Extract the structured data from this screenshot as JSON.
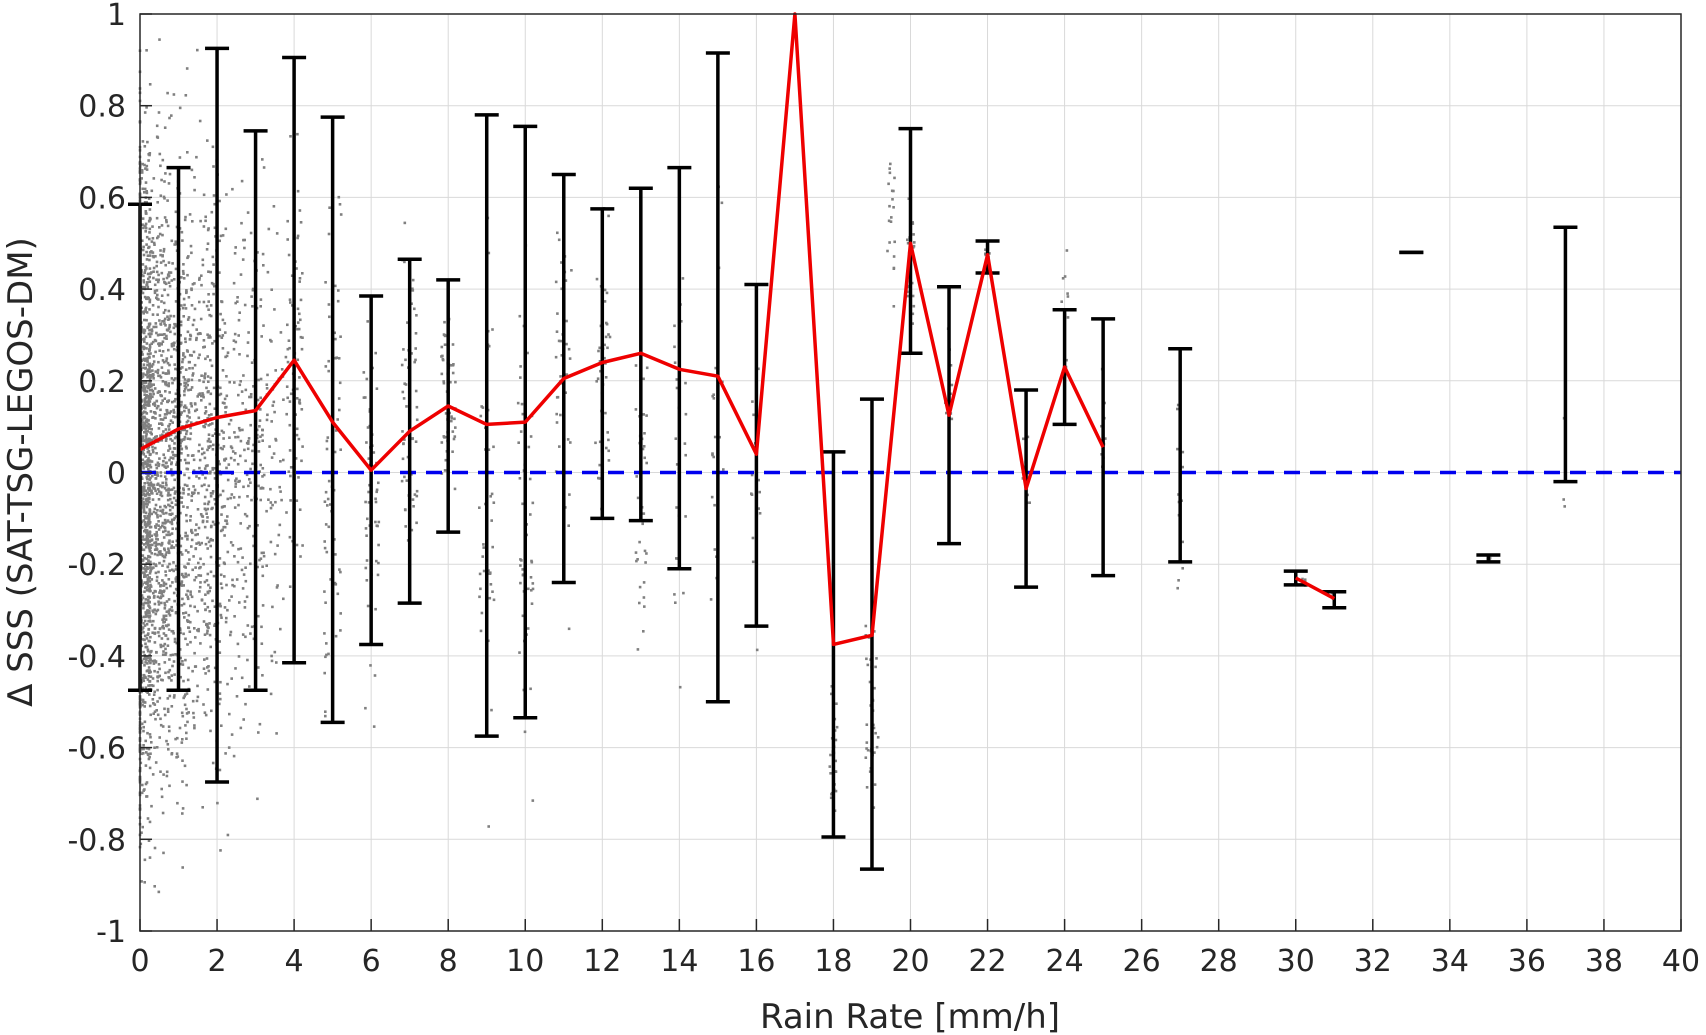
{
  "chart_data": {
    "type": "scatter",
    "xlabel": "Rain Rate [mm/h]",
    "ylabel": "Δ SSS (SAT-TSG-LEGOS-DM)",
    "xlim": [
      0,
      40
    ],
    "ylim": [
      -1,
      1
    ],
    "x_ticks": [
      "0",
      "2",
      "4",
      "6",
      "8",
      "10",
      "12",
      "14",
      "16",
      "18",
      "20",
      "22",
      "24",
      "26",
      "28",
      "30",
      "32",
      "34",
      "36",
      "38",
      "40"
    ],
    "y_ticks": [
      "-1",
      "-0.8",
      "-0.6",
      "-0.4",
      "-0.2",
      "0",
      "0.2",
      "0.4",
      "0.6",
      "0.8",
      "1"
    ],
    "grid": true,
    "reference_line": {
      "y": 0,
      "style": "dashed",
      "color": "#0000ee"
    },
    "colors": {
      "mean_line": "#ee0000",
      "error_bars": "#000000",
      "scatter": "#808080",
      "grid": "#d9d9d9"
    },
    "mean_line": [
      [
        0,
        0.05
      ],
      [
        1,
        0.095
      ],
      [
        2,
        0.12
      ],
      [
        3,
        0.135
      ],
      [
        4,
        0.245
      ],
      [
        5,
        0.11
      ],
      [
        6,
        0.005
      ],
      [
        7,
        0.09
      ],
      [
        8,
        0.145
      ],
      [
        9,
        0.105
      ],
      [
        10,
        0.11
      ],
      [
        11,
        0.205
      ],
      [
        12,
        0.24
      ],
      [
        13,
        0.26
      ],
      [
        14,
        0.225
      ],
      [
        15,
        0.21
      ],
      [
        16,
        0.04
      ],
      [
        17,
        1.0
      ],
      [
        18,
        -0.375
      ],
      [
        19,
        -0.355
      ],
      [
        20,
        0.5
      ],
      [
        21,
        0.125
      ],
      [
        22,
        0.475
      ],
      [
        23,
        -0.035
      ],
      [
        24,
        0.23
      ],
      [
        25,
        0.055
      ]
    ],
    "mean_line_segment_2": [
      [
        30,
        -0.23
      ],
      [
        31,
        -0.275
      ]
    ],
    "error_bars": [
      {
        "x": 0,
        "low": -0.475,
        "high": 0.585
      },
      {
        "x": 1,
        "low": -0.475,
        "high": 0.665
      },
      {
        "x": 2,
        "low": -0.675,
        "high": 0.925
      },
      {
        "x": 3,
        "low": -0.475,
        "high": 0.745
      },
      {
        "x": 4,
        "low": -0.415,
        "high": 0.905
      },
      {
        "x": 5,
        "low": -0.545,
        "high": 0.775
      },
      {
        "x": 6,
        "low": -0.375,
        "high": 0.385
      },
      {
        "x": 7,
        "low": -0.285,
        "high": 0.465
      },
      {
        "x": 8,
        "low": -0.13,
        "high": 0.42
      },
      {
        "x": 9,
        "low": -0.575,
        "high": 0.78
      },
      {
        "x": 10,
        "low": -0.535,
        "high": 0.755
      },
      {
        "x": 11,
        "low": -0.24,
        "high": 0.65
      },
      {
        "x": 12,
        "low": -0.1,
        "high": 0.575
      },
      {
        "x": 13,
        "low": -0.105,
        "high": 0.62
      },
      {
        "x": 14,
        "low": -0.21,
        "high": 0.665
      },
      {
        "x": 15,
        "low": -0.5,
        "high": 0.915
      },
      {
        "x": 16,
        "low": -0.335,
        "high": 0.41
      },
      {
        "x": 18,
        "low": -0.795,
        "high": 0.045
      },
      {
        "x": 19,
        "low": -0.865,
        "high": 0.16
      },
      {
        "x": 20,
        "low": 0.26,
        "high": 0.75
      },
      {
        "x": 21,
        "low": -0.155,
        "high": 0.405
      },
      {
        "x": 22,
        "low": 0.435,
        "high": 0.505
      },
      {
        "x": 23,
        "low": -0.25,
        "high": 0.18
      },
      {
        "x": 24,
        "low": 0.105,
        "high": 0.355
      },
      {
        "x": 25,
        "low": -0.225,
        "high": 0.335
      },
      {
        "x": 27,
        "low": -0.195,
        "high": 0.27
      },
      {
        "x": 30,
        "low": -0.245,
        "high": -0.215
      },
      {
        "x": 31,
        "low": -0.295,
        "high": -0.26
      },
      {
        "x": 33,
        "low": 0.48,
        "high": 0.48
      },
      {
        "x": 35,
        "low": -0.195,
        "high": -0.18
      },
      {
        "x": 37,
        "low": -0.02,
        "high": 0.535
      }
    ],
    "scatter_bins": [
      {
        "x": 0,
        "lo": -1.0,
        "hi": 1.0,
        "n": 1500,
        "spread": 0.55
      },
      {
        "x": 0.5,
        "lo": -1.0,
        "hi": 1.0,
        "n": 650,
        "spread": 0.55
      },
      {
        "x": 1,
        "lo": -1.0,
        "hi": 1.0,
        "n": 420,
        "spread": 0.55
      },
      {
        "x": 1.5,
        "lo": -0.95,
        "hi": 1.0,
        "n": 260,
        "spread": 0.55
      },
      {
        "x": 2,
        "lo": -0.95,
        "hi": 0.95,
        "n": 230,
        "spread": 0.5
      },
      {
        "x": 2.5,
        "lo": -0.9,
        "hi": 0.85,
        "n": 120,
        "spread": 0.5
      },
      {
        "x": 3,
        "lo": -0.75,
        "hi": 0.8,
        "n": 110,
        "spread": 0.45
      },
      {
        "x": 3.5,
        "lo": -0.7,
        "hi": 0.75,
        "n": 60,
        "spread": 0.45
      },
      {
        "x": 4,
        "lo": -0.45,
        "hi": 0.95,
        "n": 80,
        "spread": 0.45
      },
      {
        "x": 5,
        "lo": -0.85,
        "hi": 0.8,
        "n": 70,
        "spread": 0.45
      },
      {
        "x": 6,
        "lo": -0.65,
        "hi": 0.6,
        "n": 55,
        "spread": 0.4
      },
      {
        "x": 7,
        "lo": -0.35,
        "hi": 0.7,
        "n": 55,
        "spread": 0.4
      },
      {
        "x": 8,
        "lo": -0.2,
        "hi": 0.55,
        "n": 55,
        "spread": 0.4
      },
      {
        "x": 9,
        "lo": -0.9,
        "hi": 0.8,
        "n": 45,
        "spread": 0.4
      },
      {
        "x": 10,
        "lo": -0.95,
        "hi": 0.8,
        "n": 50,
        "spread": 0.4
      },
      {
        "x": 11,
        "lo": -0.4,
        "hi": 0.8,
        "n": 45,
        "spread": 0.4
      },
      {
        "x": 12,
        "lo": -0.2,
        "hi": 0.75,
        "n": 45,
        "spread": 0.4
      },
      {
        "x": 13,
        "lo": -0.55,
        "hi": 0.4,
        "n": 35,
        "spread": 0.35
      },
      {
        "x": 14,
        "lo": -0.65,
        "hi": 0.6,
        "n": 25,
        "spread": 0.35
      },
      {
        "x": 15,
        "lo": -0.5,
        "hi": 0.8,
        "n": 20,
        "spread": 0.35
      },
      {
        "x": 16,
        "lo": -0.5,
        "hi": 0.4,
        "n": 15,
        "spread": 0.3
      },
      {
        "x": 18,
        "lo": -0.85,
        "hi": -0.35,
        "n": 25,
        "spread": 0.2
      },
      {
        "x": 19,
        "lo": -0.85,
        "hi": -0.2,
        "n": 35,
        "spread": 0.35
      },
      {
        "x": 19.5,
        "lo": 0.3,
        "hi": 0.88,
        "n": 20,
        "spread": 0.2
      },
      {
        "x": 20,
        "lo": 0.2,
        "hi": 0.75,
        "n": 25,
        "spread": 0.2
      },
      {
        "x": 21,
        "lo": -0.05,
        "hi": 0.4,
        "n": 12,
        "spread": 0.2
      },
      {
        "x": 22,
        "lo": 0.43,
        "hi": 0.5,
        "n": 12,
        "spread": 0.15
      },
      {
        "x": 23,
        "lo": -0.2,
        "hi": 0.2,
        "n": 10,
        "spread": 0.2
      },
      {
        "x": 24,
        "lo": 0.1,
        "hi": 0.6,
        "n": 10,
        "spread": 0.2
      },
      {
        "x": 25,
        "lo": -0.2,
        "hi": 0.4,
        "n": 10,
        "spread": 0.15
      },
      {
        "x": 27,
        "lo": -0.32,
        "hi": 0.28,
        "n": 14,
        "spread": 0.15
      },
      {
        "x": 30.2,
        "lo": -0.25,
        "hi": -0.22,
        "n": 4,
        "spread": 0.1
      },
      {
        "x": 31,
        "lo": -0.29,
        "hi": -0.26,
        "n": 4,
        "spread": 0.1
      },
      {
        "x": 35,
        "lo": -0.2,
        "hi": -0.17,
        "n": 4,
        "spread": 0.1
      },
      {
        "x": 37,
        "lo": -0.23,
        "hi": 0.26,
        "n": 3,
        "spread": 0.1
      }
    ]
  }
}
